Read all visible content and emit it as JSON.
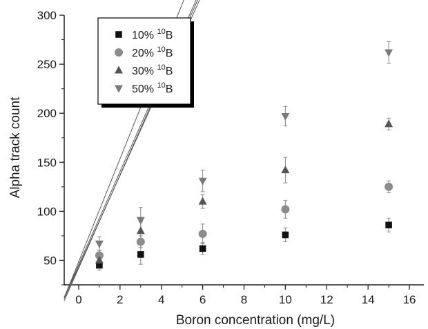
{
  "chart_data": {
    "type": "scatter",
    "xlabel": "Boron concentration (mg/L)",
    "ylabel": "Alpha track count",
    "xlim": [
      -0.7,
      16.7
    ],
    "ylim": [
      25,
      300
    ],
    "xticks": [
      0,
      2,
      4,
      6,
      8,
      10,
      12,
      14,
      16
    ],
    "yticks": [
      50,
      100,
      150,
      200,
      250,
      300
    ],
    "x": [
      1,
      3,
      6,
      10,
      15
    ],
    "legend_position": "top-left",
    "series": [
      {
        "name_prefix": "10% ",
        "name_sup": "10",
        "name_suffix": "B",
        "marker": "square",
        "color": "#111111",
        "values": [
          45,
          56,
          62,
          76,
          86
        ],
        "errors": [
          5,
          10,
          6,
          7,
          7
        ],
        "fit": [
          43.5,
          46.5
        ]
      },
      {
        "name_prefix": "20% ",
        "name_sup": "10",
        "name_suffix": "B",
        "marker": "circle",
        "color": "#8c8c8c",
        "values": [
          55,
          69,
          77,
          102,
          125
        ],
        "errors": [
          5,
          6,
          10,
          9,
          6
        ],
        "fit": [
          45.5,
          47.5
        ]
      },
      {
        "name_prefix": "30% ",
        "name_sup": "10",
        "name_suffix": "B",
        "marker": "triangle-up",
        "color": "#555555",
        "values": [
          50,
          80,
          110,
          142,
          189
        ],
        "errors": [
          5,
          9,
          7,
          13,
          6
        ],
        "fit": [
          42,
          47.5
        ]
      },
      {
        "name_prefix": "50% ",
        "name_sup": "10",
        "name_suffix": "B",
        "marker": "triangle-down",
        "color": "#7a7a7a",
        "values": [
          67,
          91,
          131,
          197,
          262
        ],
        "errors": [
          7,
          13,
          11,
          10,
          11
        ],
        "fit": [
          48.5,
          52.5
        ]
      }
    ]
  }
}
